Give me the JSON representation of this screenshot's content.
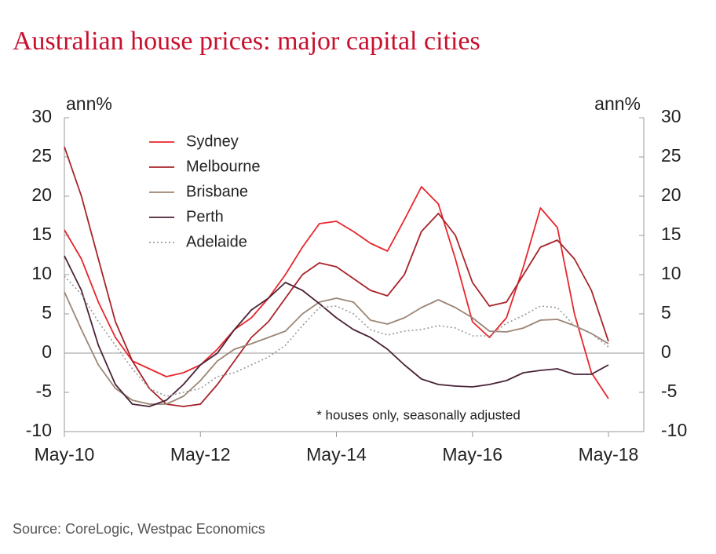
{
  "chart_data": {
    "type": "line",
    "title": "Australian house prices: major capital cities",
    "y_label": "ann%",
    "y2_label": "ann%",
    "annotation": "* houses only, seasonally adjusted",
    "source": "Source: CoreLogic, Westpac Economics",
    "categories": [
      "May-10",
      null,
      null,
      null,
      null,
      null,
      null,
      null,
      "May-12",
      null,
      null,
      null,
      null,
      null,
      null,
      null,
      "May-14",
      null,
      null,
      null,
      null,
      null,
      null,
      null,
      "May-16",
      null,
      null,
      null,
      null,
      null,
      null,
      null,
      "May-18"
    ],
    "ylim": [
      -10,
      30
    ],
    "yticks": [
      -10,
      -5,
      0,
      5,
      10,
      15,
      20,
      25,
      30
    ],
    "y2lim": [
      -10,
      30
    ],
    "y2ticks": [
      -10,
      -5,
      0,
      5,
      10,
      15,
      20,
      25,
      30
    ],
    "series": [
      {
        "name": "Sydney",
        "color": "#e8262b",
        "values": [
          15.7,
          12,
          6.5,
          2,
          -1,
          -2,
          -3,
          -2.5,
          -1.5,
          0.5,
          3,
          4.5,
          7,
          10,
          13.5,
          16.5,
          16.8,
          15.5,
          14,
          13,
          17,
          21.2,
          19,
          12,
          4,
          2,
          4.5,
          11,
          18.5,
          16,
          5,
          -2.5,
          -5.8
        ]
      },
      {
        "name": "Melbourne",
        "color": "#a8232a",
        "values": [
          26.3,
          20,
          12,
          4,
          -1,
          -4.5,
          -6.5,
          -6.8,
          -6.5,
          -4,
          -1,
          2,
          4,
          7,
          10,
          11.5,
          11,
          9.5,
          8,
          7.3,
          10,
          15.5,
          17.8,
          15,
          9,
          6,
          6.5,
          10,
          13.5,
          14.4,
          12,
          8,
          1.5
        ]
      },
      {
        "name": "Brisbane",
        "color": "#9c8675",
        "values": [
          7.8,
          3,
          -1.5,
          -4.5,
          -6,
          -6.5,
          -6.5,
          -5.5,
          -3.5,
          -1,
          0.5,
          1.2,
          2,
          2.8,
          5,
          6.5,
          7,
          6.5,
          4.2,
          3.7,
          4.5,
          5.8,
          6.8,
          5.8,
          4.5,
          2.8,
          2.7,
          3.2,
          4.2,
          4.3,
          3.5,
          2.5,
          1.2
        ]
      },
      {
        "name": "Perth",
        "color": "#4a2337",
        "values": [
          12.4,
          8,
          1,
          -4,
          -6.5,
          -6.8,
          -6,
          -4,
          -1.5,
          0,
          3,
          5.5,
          7,
          9,
          8,
          6.3,
          4.5,
          3,
          2,
          0.5,
          -1.5,
          -3.3,
          -4,
          -4.2,
          -4.3,
          -4,
          -3.5,
          -2.5,
          -2.2,
          -2,
          -2.7,
          -2.7,
          -1.5
        ]
      },
      {
        "name": "Adelaide",
        "color": "#999999",
        "dashed": true,
        "values": [
          9.8,
          7.5,
          4,
          1,
          -2,
          -4.5,
          -5.5,
          -5,
          -4.5,
          -3,
          -2.5,
          -1.5,
          -0.5,
          1,
          3.5,
          5.8,
          6,
          5,
          3,
          2.3,
          2.8,
          3,
          3.5,
          3.2,
          2.2,
          2.2,
          3.8,
          4.8,
          6,
          5.8,
          3.5,
          2.5,
          0.8
        ]
      }
    ]
  }
}
